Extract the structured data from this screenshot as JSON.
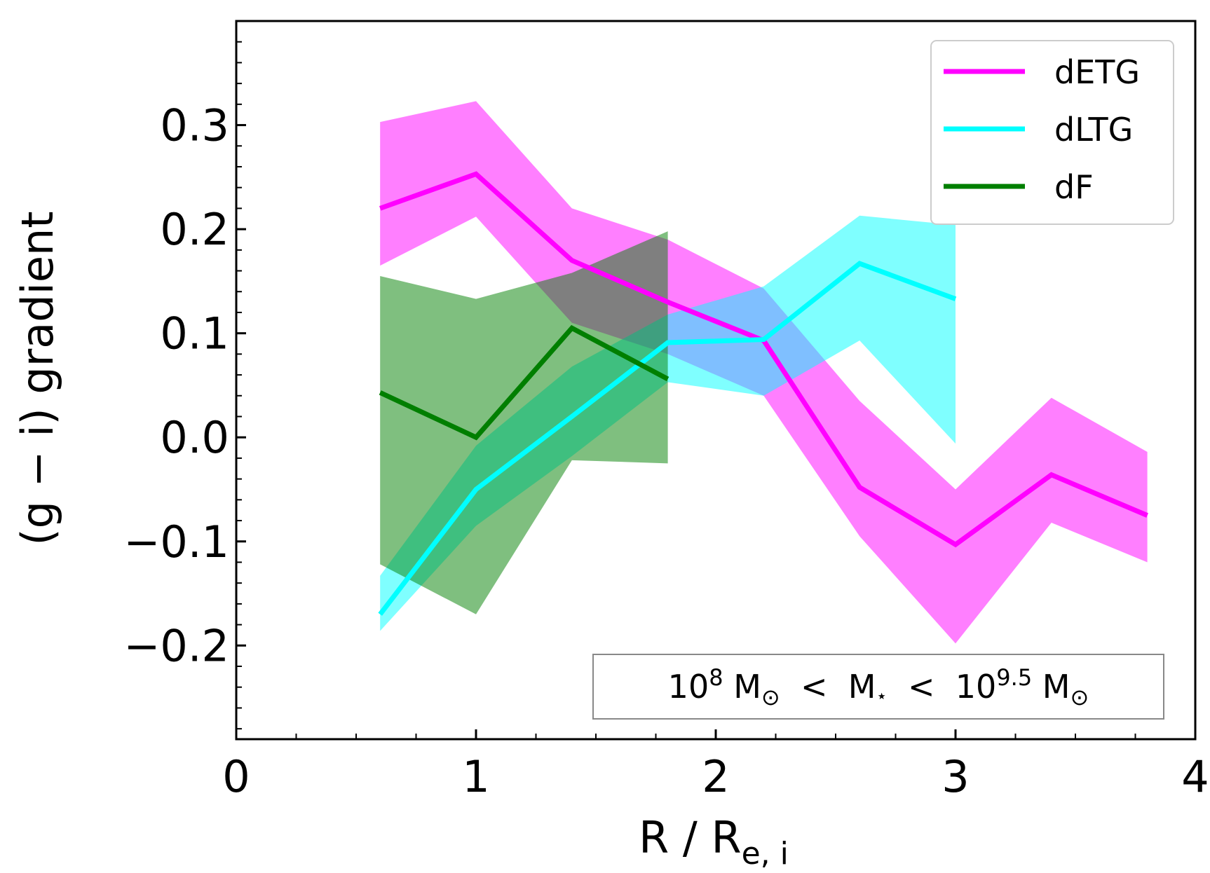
{
  "chart_data": {
    "type": "line",
    "xlabel": "R / R",
    "xlabel_sub": "e, i",
    "ylabel": "(g − i)  gradient",
    "xlim": [
      0,
      4
    ],
    "ylim": [
      -0.29,
      0.4
    ],
    "xticks": [
      0,
      1,
      2,
      3,
      4
    ],
    "xtick_labels": [
      "0",
      "1",
      "2",
      "3",
      "4"
    ],
    "yticks": [
      -0.2,
      -0.1,
      0.0,
      0.1,
      0.2,
      0.3
    ],
    "ytick_labels": [
      "−0.2",
      "−0.1",
      "0.0",
      "0.1",
      "0.2",
      "0.3"
    ],
    "grid": false,
    "legend_position": "top-right",
    "series": [
      {
        "name": "dETG",
        "color": "#ff00ff",
        "x": [
          0.6,
          1.0,
          1.4,
          1.8,
          2.2,
          2.6,
          3.0,
          3.4,
          3.8
        ],
        "y": [
          0.22,
          0.253,
          0.17,
          0.13,
          0.093,
          -0.048,
          -0.103,
          -0.036,
          -0.075
        ],
        "upper": [
          0.303,
          0.323,
          0.22,
          0.19,
          0.143,
          0.035,
          -0.05,
          0.038,
          -0.014
        ],
        "lower": [
          0.165,
          0.212,
          0.11,
          0.08,
          0.04,
          -0.095,
          -0.198,
          -0.082,
          -0.12
        ]
      },
      {
        "name": "dLTG",
        "color": "#00ffff",
        "x": [
          0.6,
          1.0,
          1.4,
          1.8,
          2.2,
          2.6,
          3.0
        ],
        "y": [
          -0.17,
          -0.05,
          0.02,
          0.091,
          0.094,
          0.167,
          0.133
        ],
        "upper": [
          -0.133,
          -0.008,
          0.068,
          0.118,
          0.145,
          0.213,
          0.204
        ],
        "lower": [
          -0.186,
          -0.085,
          -0.018,
          0.053,
          0.04,
          0.093,
          -0.006
        ]
      },
      {
        "name": "dF",
        "color": "#007f00",
        "x": [
          0.6,
          1.0,
          1.4,
          1.8
        ],
        "y": [
          0.043,
          0.0,
          0.105,
          0.056
        ],
        "upper": [
          0.155,
          0.133,
          0.158,
          0.198
        ],
        "lower": [
          -0.122,
          -0.17,
          -0.022,
          -0.025
        ]
      }
    ],
    "annotation": {
      "text_parts": [
        "10",
        "8",
        " M",
        "⊙",
        "  <  M",
        "⋆",
        "  <  10",
        "9.5",
        " M",
        "⊙"
      ],
      "position": "bottom-right"
    }
  }
}
